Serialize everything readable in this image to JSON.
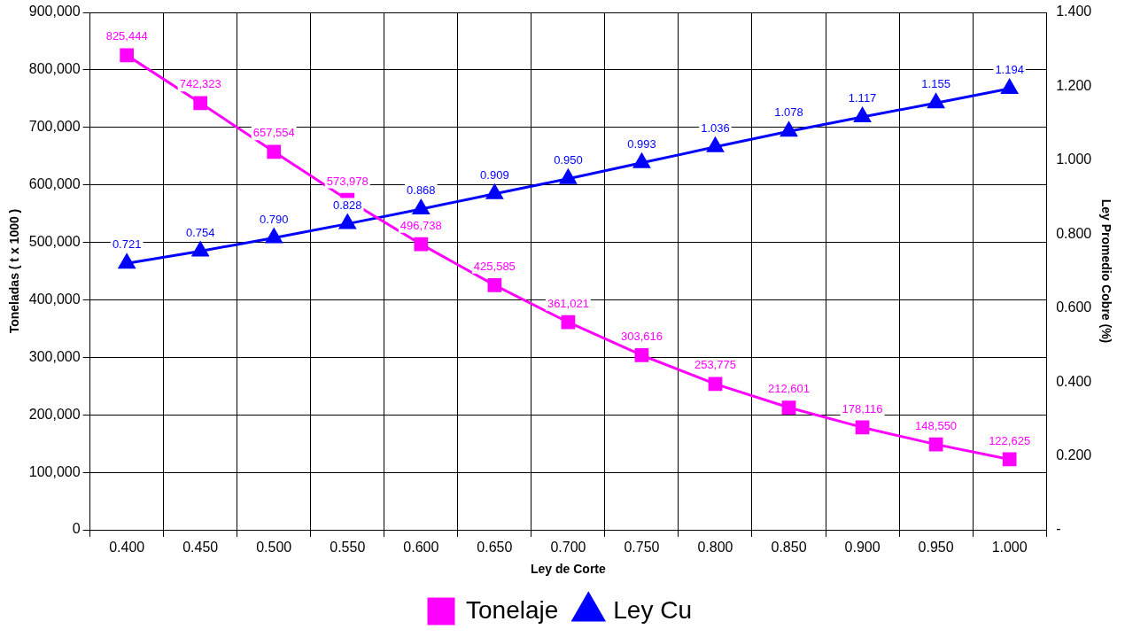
{
  "chart_data": {
    "type": "line",
    "xlabel": "Ley de Corte",
    "ylabel": "Toneladas ( t x 1000 )",
    "y2label": "Ley Promedio Cobre (%)",
    "categories": [
      "0.400",
      "0.450",
      "0.500",
      "0.550",
      "0.600",
      "0.650",
      "0.700",
      "0.750",
      "0.800",
      "0.850",
      "0.900",
      "0.950",
      "1.000"
    ],
    "series": [
      {
        "name": "Tonelaje",
        "color": "#ff00ff",
        "marker": "square",
        "values": [
          825444,
          742323,
          657554,
          573978,
          496738,
          425585,
          361021,
          303616,
          253775,
          212601,
          178116,
          148550,
          122625
        ],
        "value_labels": [
          "825,444",
          "742,323",
          "657,554",
          "573,978",
          "496,738",
          "425,585",
          "361,021",
          "303,616",
          "253,775",
          "212,601",
          "178,116",
          "148,550",
          "122,625"
        ]
      },
      {
        "name": "Ley Cu",
        "color": "#0000ff",
        "marker": "triangle",
        "axis": "y2",
        "values": [
          0.721,
          0.754,
          0.79,
          0.828,
          0.868,
          0.909,
          0.95,
          0.993,
          1.036,
          1.078,
          1.117,
          1.155,
          1.194
        ],
        "value_labels": [
          "0.721",
          "0.754",
          "0.790",
          "0.828",
          "0.868",
          "0.909",
          "0.950",
          "0.993",
          "1.036",
          "1.078",
          "1.117",
          "1.155",
          "1.194"
        ]
      }
    ],
    "ylim": [
      0,
      900000
    ],
    "yticks": [
      0,
      {
        "value": 100000,
        "label": "100,000"
      },
      {
        "value": 200000,
        "label": "200,000"
      },
      {
        "value": 300000,
        "label": "300,000"
      },
      {
        "value": 400000,
        "label": "400,000"
      },
      {
        "value": 500000,
        "label": "500,000"
      },
      {
        "value": 600000,
        "label": "600,000"
      },
      {
        "value": 700000,
        "label": "700,000"
      },
      {
        "value": 800000,
        "label": "800,000"
      },
      {
        "value": 900000,
        "label": "900,000"
      }
    ],
    "y2lim": [
      0,
      1.4
    ],
    "y2ticks": [
      {
        "value": 0,
        "label": "-"
      },
      {
        "value": 0.2,
        "label": "0.200"
      },
      {
        "value": 0.4,
        "label": "0.400"
      },
      {
        "value": 0.6,
        "label": "0.600"
      },
      {
        "value": 0.8,
        "label": "0.800"
      },
      {
        "value": 1.0,
        "label": "1.000"
      },
      {
        "value": 1.2,
        "label": "1.200"
      },
      {
        "value": 1.4,
        "label": "1.400"
      }
    ],
    "grid": true,
    "legend": "bottom",
    "line_style": "solid"
  }
}
